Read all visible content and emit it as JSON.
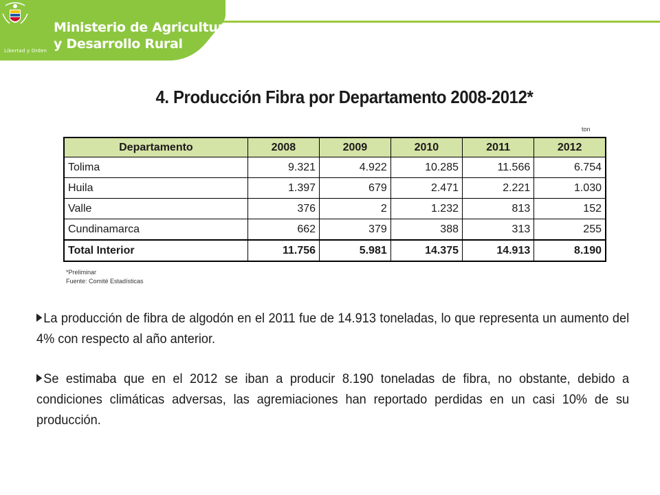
{
  "header": {
    "ministry_line1": "Ministerio de Agricultura",
    "ministry_line2": "y Desarrollo Rural",
    "seal_motto": "Libertad y Orden",
    "brand_color": "#8cc63f"
  },
  "title": "4. Producción Fibra  por Departamento 2008-2012*",
  "table": {
    "unit": "ton",
    "headers": [
      "Departamento",
      "2008",
      "2009",
      "2010",
      "2011",
      "2012"
    ],
    "rows": [
      {
        "name": "Tolima",
        "values": [
          "9.321",
          "4.922",
          "10.285",
          "11.566",
          "6.754"
        ]
      },
      {
        "name": "Huila",
        "values": [
          "1.397",
          "679",
          "2.471",
          "2.221",
          "1.030"
        ]
      },
      {
        "name": "Valle",
        "values": [
          "376",
          "2",
          "1.232",
          "813",
          "152"
        ]
      },
      {
        "name": "Cundinamarca",
        "values": [
          "662",
          "379",
          "388",
          "313",
          "255"
        ]
      }
    ],
    "total": {
      "name": "Total Interior",
      "values": [
        "11.756",
        "5.981",
        "14.375",
        "14.913",
        "8.190"
      ]
    },
    "note": "*Preliminar",
    "source": "Fuente: Comité Estadísticas"
  },
  "bullets": [
    "La producción de fibra de algodón en el 2011 fue de 14.913 toneladas, lo que representa un aumento del 4% con respecto al año anterior.",
    "Se estimaba que en el 2012 se iban a producir 8.190 toneladas de fibra, no obstante, debido a condiciones climáticas adversas, las agremiaciones han reportado perdidas en un casi 10% de su producción."
  ]
}
